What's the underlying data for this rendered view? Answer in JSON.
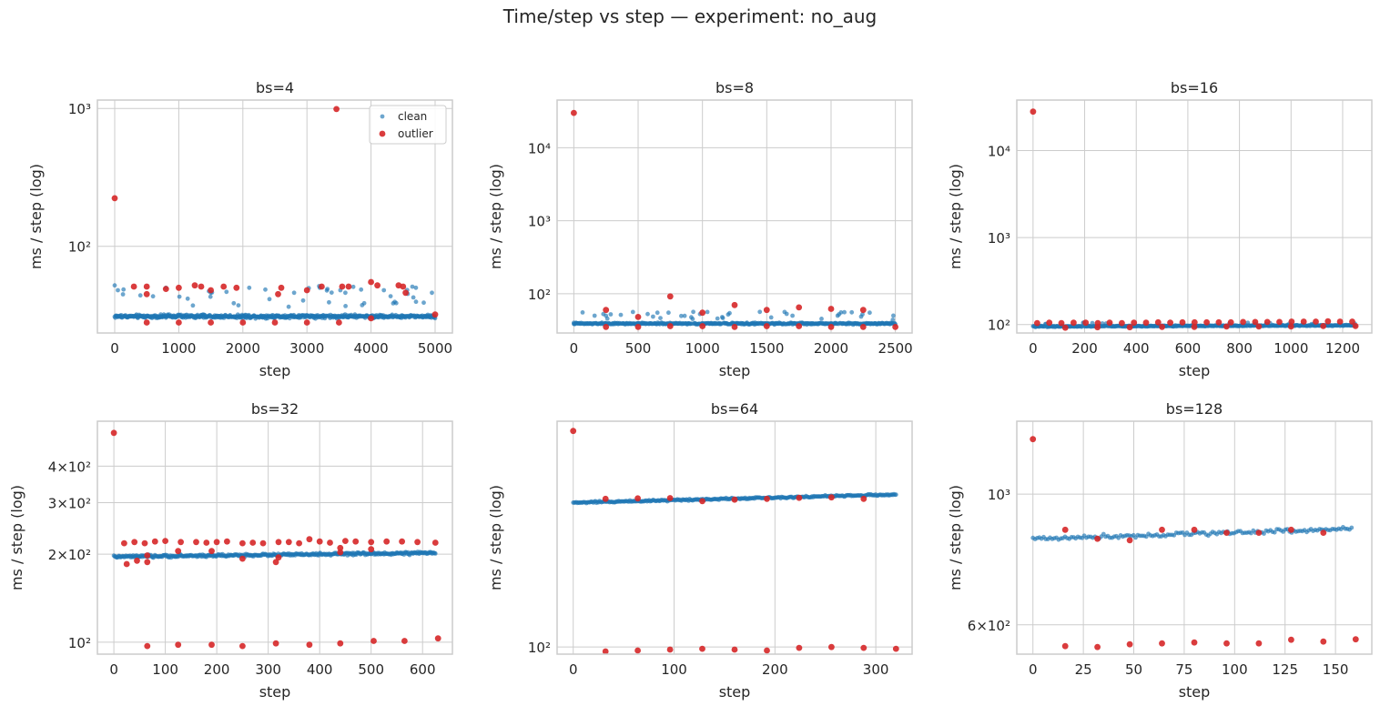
{
  "figure": {
    "title": "Time/step vs step — experiment: no_aug",
    "colors": {
      "clean": "#1f77b4",
      "outlier": "#d62728",
      "grid": "#cccccc",
      "spine": "#cccccc",
      "text": "#262626"
    }
  },
  "chart_data": [
    {
      "type": "scatter",
      "title": "bs=4",
      "xlabel": "step",
      "ylabel": "ms / step (log)",
      "yscale": "log",
      "xlim": [
        -270,
        5270
      ],
      "ylim": [
        23.5,
        1150
      ],
      "xticks": [
        0,
        1000,
        2000,
        3000,
        4000,
        5000
      ],
      "yticks": [
        {
          "v": 100,
          "label": "10²"
        },
        {
          "v": 1000,
          "label": "10³"
        }
      ],
      "grid": true,
      "legend": {
        "placement": "upper-right",
        "entries": [
          "clean",
          "outlier"
        ]
      },
      "clean": {
        "x_range": [
          0,
          5000
        ],
        "base": 31,
        "trend": 0,
        "jitter": 0.04,
        "n": 620,
        "upper_frac": 0.06,
        "upper": [
          36,
          52
        ]
      },
      "series": [
        {
          "name": "clean",
          "points": [
            [
              0,
              52
            ],
            [
              50,
              48
            ],
            [
              400,
              44
            ],
            [
              800,
              50
            ],
            [
              1500,
              46
            ],
            [
              2100,
              50
            ],
            [
              2800,
              46
            ],
            [
              3200,
              50
            ],
            [
              3600,
              46
            ],
            [
              4200,
              48
            ],
            [
              4700,
              50
            ],
            [
              4950,
              46
            ]
          ]
        },
        {
          "name": "outlier",
          "points": [
            [
              0,
              223
            ],
            [
              3460,
              990
            ],
            [
              300,
              51
            ],
            [
              500,
              51
            ],
            [
              500,
              45
            ],
            [
              800,
              49
            ],
            [
              1000,
              50
            ],
            [
              1250,
              52
            ],
            [
              1350,
              51
            ],
            [
              1500,
              48
            ],
            [
              1700,
              51
            ],
            [
              1900,
              50
            ],
            [
              2550,
              45
            ],
            [
              2600,
              50
            ],
            [
              3000,
              48
            ],
            [
              3230,
              51
            ],
            [
              3550,
              51
            ],
            [
              3650,
              51
            ],
            [
              4000,
              55
            ],
            [
              4100,
              52
            ],
            [
              4430,
              52
            ],
            [
              4500,
              51
            ],
            [
              4540,
              46
            ],
            [
              500,
              28
            ],
            [
              1000,
              28
            ],
            [
              1500,
              28
            ],
            [
              2000,
              28
            ],
            [
              2500,
              28
            ],
            [
              3000,
              28
            ],
            [
              3500,
              28
            ],
            [
              4000,
              30
            ],
            [
              5000,
              32
            ]
          ]
        }
      ]
    },
    {
      "type": "scatter",
      "title": "bs=8",
      "xlabel": "step",
      "ylabel": "ms / step (log)",
      "yscale": "log",
      "xlim": [
        -130,
        2630
      ],
      "ylim": [
        29,
        45000
      ],
      "xticks": [
        0,
        500,
        1000,
        1500,
        2000,
        2500
      ],
      "yticks": [
        {
          "v": 100,
          "label": "10²"
        },
        {
          "v": 1000,
          "label": "10³"
        },
        {
          "v": 10000,
          "label": "10⁴"
        }
      ],
      "grid": true,
      "clean": {
        "x_range": [
          0,
          2500
        ],
        "base": 39,
        "trend": 0,
        "jitter": 0.035,
        "n": 480,
        "upper_frac": 0.08,
        "upper": [
          45,
          58
        ]
      },
      "series": [
        {
          "name": "clean",
          "points": [
            [
              0,
              40
            ],
            [
              250,
              50
            ],
            [
              650,
              55
            ],
            [
              1200,
              52
            ],
            [
              1700,
              50
            ],
            [
              2300,
              55
            ],
            [
              2480,
              44
            ]
          ]
        },
        {
          "name": "outlier",
          "points": [
            [
              0,
              30000
            ],
            [
              250,
              60
            ],
            [
              500,
              48
            ],
            [
              750,
              92
            ],
            [
              1000,
              55
            ],
            [
              1250,
              70
            ],
            [
              1500,
              60
            ],
            [
              1750,
              65
            ],
            [
              2000,
              62
            ],
            [
              2250,
              60
            ],
            [
              250,
              35
            ],
            [
              500,
              35
            ],
            [
              750,
              36
            ],
            [
              1000,
              36
            ],
            [
              1250,
              35
            ],
            [
              1500,
              36
            ],
            [
              1750,
              36
            ],
            [
              2000,
              35
            ],
            [
              2250,
              35
            ],
            [
              2500,
              35
            ]
          ]
        }
      ]
    },
    {
      "type": "scatter",
      "title": "bs=16",
      "xlabel": "step",
      "ylabel": "ms / step (log)",
      "yscale": "log",
      "xlim": [
        -63,
        1313
      ],
      "ylim": [
        80,
        38000
      ],
      "xticks": [
        0,
        200,
        400,
        600,
        800,
        1000,
        1200
      ],
      "yticks": [
        {
          "v": 100,
          "label": "10²"
        },
        {
          "v": 1000,
          "label": "10³"
        },
        {
          "v": 10000,
          "label": "10⁴"
        }
      ],
      "grid": true,
      "clean": {
        "x_range": [
          0,
          1250
        ],
        "base": 95,
        "trend": 0.03,
        "jitter": 0.02,
        "n": 420,
        "upper_frac": 0.03,
        "upper": [
          100,
          106
        ]
      },
      "series": [
        {
          "name": "clean",
          "points": []
        },
        {
          "name": "outlier",
          "points": [
            [
              0,
              28000
            ],
            [
              16,
              104
            ],
            [
              63,
              105
            ],
            [
              110,
              104
            ],
            [
              157,
              105
            ],
            [
              204,
              105
            ],
            [
              251,
              104
            ],
            [
              297,
              105
            ],
            [
              344,
              104
            ],
            [
              391,
              105
            ],
            [
              438,
              105
            ],
            [
              485,
              106
            ],
            [
              532,
              105
            ],
            [
              579,
              106
            ],
            [
              626,
              106
            ],
            [
              673,
              106
            ],
            [
              720,
              106
            ],
            [
              767,
              106
            ],
            [
              814,
              107
            ],
            [
              861,
              107
            ],
            [
              908,
              107
            ],
            [
              955,
              107
            ],
            [
              1002,
              108
            ],
            [
              1049,
              108
            ],
            [
              1096,
              108
            ],
            [
              1143,
              109
            ],
            [
              1190,
              108
            ],
            [
              1237,
              108
            ],
            [
              125,
              92
            ],
            [
              250,
              93
            ],
            [
              375,
              93
            ],
            [
              500,
              94
            ],
            [
              625,
              94
            ],
            [
              750,
              95
            ],
            [
              875,
              95
            ],
            [
              1000,
              95
            ],
            [
              1125,
              96
            ],
            [
              1250,
              96
            ]
          ]
        }
      ]
    },
    {
      "type": "scatter",
      "title": "bs=32",
      "xlabel": "step",
      "ylabel": "ms / step (log)",
      "yscale": "log",
      "xlim": [
        -32,
        658
      ],
      "ylim": [
        91,
        570
      ],
      "xticks": [
        0,
        100,
        200,
        300,
        400,
        500,
        600
      ],
      "yticks": [
        {
          "v": 100,
          "label": "10²"
        },
        {
          "v": 200,
          "label": "2×10²"
        },
        {
          "v": 300,
          "label": "3×10²"
        },
        {
          "v": 400,
          "label": "4×10²"
        }
      ],
      "grid": true,
      "clean": {
        "x_range": [
          0,
          625
        ],
        "base": 196,
        "trend": 0.03,
        "jitter": 0.015,
        "n": 400,
        "upper_frac": 0,
        "upper": [
          0,
          0
        ]
      },
      "series": [
        {
          "name": "clean",
          "points": []
        },
        {
          "name": "outlier",
          "points": [
            [
              0,
              520
            ],
            [
              20,
              218
            ],
            [
              40,
              220
            ],
            [
              60,
              218
            ],
            [
              80,
              221
            ],
            [
              100,
              222
            ],
            [
              130,
              220
            ],
            [
              160,
              220
            ],
            [
              180,
              219
            ],
            [
              200,
              220
            ],
            [
              220,
              221
            ],
            [
              250,
              218
            ],
            [
              270,
              219
            ],
            [
              290,
              218
            ],
            [
              320,
              220
            ],
            [
              340,
              220
            ],
            [
              360,
              218
            ],
            [
              380,
              225
            ],
            [
              400,
              221
            ],
            [
              420,
              219
            ],
            [
              450,
              222
            ],
            [
              470,
              221
            ],
            [
              500,
              220
            ],
            [
              530,
              221
            ],
            [
              560,
              221
            ],
            [
              590,
              220
            ],
            [
              625,
              219
            ],
            [
              25,
              185
            ],
            [
              45,
              190
            ],
            [
              65,
              188
            ],
            [
              65,
              198
            ],
            [
              125,
              205
            ],
            [
              190,
              205
            ],
            [
              250,
              193
            ],
            [
              315,
              188
            ],
            [
              320,
              195
            ],
            [
              440,
              210
            ],
            [
              440,
              203
            ],
            [
              500,
              208
            ],
            [
              65,
              97
            ],
            [
              125,
              98
            ],
            [
              190,
              98
            ],
            [
              250,
              97
            ],
            [
              315,
              99
            ],
            [
              380,
              98
            ],
            [
              440,
              99
            ],
            [
              505,
              101
            ],
            [
              565,
              101
            ],
            [
              630,
              103
            ]
          ]
        }
      ]
    },
    {
      "type": "scatter",
      "title": "bs=64",
      "xlabel": "step",
      "ylabel": "ms / step (log)",
      "yscale": "log",
      "xlim": [
        -16,
        336
      ],
      "ylim": [
        92,
        1400
      ],
      "xticks": [
        0,
        100,
        200,
        300
      ],
      "yticks": [
        {
          "v": 100,
          "label": "10²"
        }
      ],
      "grid": true,
      "clean": {
        "x_range": [
          0,
          320
        ],
        "base": 540,
        "trend": 0.1,
        "jitter": 0.015,
        "n": 320,
        "upper_frac": 0,
        "upper": [
          0,
          0
        ]
      },
      "series": [
        {
          "name": "clean",
          "points": []
        },
        {
          "name": "outlier",
          "points": [
            [
              0,
              1250
            ],
            [
              32,
              565
            ],
            [
              64,
              568
            ],
            [
              96,
              570
            ],
            [
              128,
              550
            ],
            [
              160,
              560
            ],
            [
              192,
              565
            ],
            [
              224,
              572
            ],
            [
              256,
              575
            ],
            [
              288,
              565
            ],
            [
              32,
              95
            ],
            [
              64,
              96
            ],
            [
              96,
              97
            ],
            [
              128,
              98
            ],
            [
              160,
              97
            ],
            [
              192,
              96
            ],
            [
              224,
              99
            ],
            [
              256,
              100
            ],
            [
              288,
              99
            ],
            [
              320,
              98
            ]
          ]
        }
      ]
    },
    {
      "type": "scatter",
      "title": "bs=128",
      "xlabel": "step",
      "ylabel": "ms / step (log)",
      "yscale": "log",
      "xlim": [
        -8,
        168
      ],
      "ylim": [
        535,
        1330
      ],
      "xticks": [
        0,
        25,
        50,
        75,
        100,
        125,
        150
      ],
      "yticks": [
        {
          "v": 600,
          "label": "6×10²"
        },
        {
          "v": 1000,
          "label": "10³"
        }
      ],
      "grid": true,
      "clean": {
        "x_range": [
          0,
          158
        ],
        "base": 840,
        "trend": 0.04,
        "jitter": 0.012,
        "n": 150,
        "upper_frac": 0,
        "upper": [
          0,
          0
        ]
      },
      "series": [
        {
          "name": "clean",
          "points": []
        },
        {
          "name": "outlier",
          "points": [
            [
              0,
              1240
            ],
            [
              16,
              870
            ],
            [
              32,
              840
            ],
            [
              48,
              835
            ],
            [
              64,
              870
            ],
            [
              80,
              870
            ],
            [
              96,
              860
            ],
            [
              112,
              860
            ],
            [
              128,
              870
            ],
            [
              144,
              860
            ],
            [
              16,
              552
            ],
            [
              32,
              550
            ],
            [
              48,
              556
            ],
            [
              64,
              558
            ],
            [
              80,
              560
            ],
            [
              96,
              558
            ],
            [
              112,
              558
            ],
            [
              128,
              566
            ],
            [
              144,
              562
            ],
            [
              160,
              567
            ]
          ]
        }
      ]
    }
  ]
}
